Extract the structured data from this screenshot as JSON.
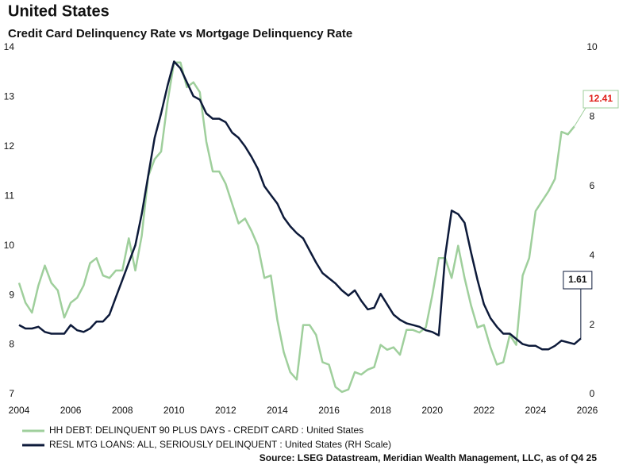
{
  "chart_data": {
    "type": "line",
    "title": "United States",
    "subtitle": "Credit Card Delinquency Rate vs Mortgage Delinquency Rate",
    "source": "Source: LSEG Datastream, Meridian Wealth Management, LLC, as of Q4 25",
    "xlim": [
      2004,
      2026
    ],
    "xticks": [
      2004,
      2006,
      2008,
      2010,
      2012,
      2014,
      2016,
      2018,
      2020,
      2022,
      2024,
      2026
    ],
    "ylim": [
      7,
      14
    ],
    "yticks": [
      7,
      8,
      9,
      10,
      11,
      12,
      13,
      14
    ],
    "y2lim": [
      0,
      10
    ],
    "y2ticks": [
      0,
      2,
      4,
      6,
      8,
      10
    ],
    "series": [
      {
        "name": "HH DEBT: DELINQUENT 90 PLUS DAYS - CREDIT CARD : United States",
        "color": "#9fcf9c",
        "axis": "y",
        "x": [
          2004,
          2004.25,
          2004.5,
          2004.75,
          2005,
          2005.25,
          2005.5,
          2005.75,
          2006,
          2006.25,
          2006.5,
          2006.75,
          2007,
          2007.25,
          2007.5,
          2007.75,
          2008,
          2008.25,
          2008.5,
          2008.75,
          2009,
          2009.25,
          2009.5,
          2009.75,
          2010,
          2010.25,
          2010.5,
          2010.75,
          2011,
          2011.25,
          2011.5,
          2011.75,
          2012,
          2012.25,
          2012.5,
          2012.75,
          2013,
          2013.25,
          2013.5,
          2013.75,
          2014,
          2014.25,
          2014.5,
          2014.75,
          2015,
          2015.25,
          2015.5,
          2015.75,
          2016,
          2016.25,
          2016.5,
          2016.75,
          2017,
          2017.25,
          2017.5,
          2017.75,
          2018,
          2018.25,
          2018.5,
          2018.75,
          2019,
          2019.25,
          2019.5,
          2019.75,
          2020,
          2020.25,
          2020.5,
          2020.75,
          2021,
          2021.25,
          2021.5,
          2021.75,
          2022,
          2022.25,
          2022.5,
          2022.75,
          2023,
          2023.25,
          2023.5,
          2023.75,
          2024,
          2024.25,
          2024.5,
          2024.75,
          2025,
          2025.25,
          2025.5
        ],
        "values": [
          9.25,
          8.85,
          8.65,
          9.2,
          9.6,
          9.25,
          9.1,
          8.55,
          8.85,
          8.95,
          9.2,
          9.65,
          9.75,
          9.4,
          9.35,
          9.5,
          9.5,
          10.15,
          9.5,
          10.2,
          11.4,
          11.75,
          11.9,
          12.9,
          13.7,
          13.7,
          13.2,
          13.3,
          13.1,
          12.1,
          11.5,
          11.5,
          11.25,
          10.85,
          10.45,
          10.55,
          10.3,
          10.0,
          9.35,
          9.4,
          8.5,
          7.85,
          7.45,
          7.3,
          8.4,
          8.4,
          8.2,
          7.65,
          7.6,
          7.15,
          7.05,
          7.1,
          7.45,
          7.4,
          7.5,
          7.55,
          8.0,
          7.9,
          7.95,
          7.8,
          8.3,
          8.3,
          8.25,
          8.35,
          9.0,
          9.75,
          9.75,
          9.35,
          10.0,
          9.35,
          8.8,
          8.35,
          8.4,
          7.95,
          7.6,
          7.65,
          8.2,
          8.0,
          9.4,
          9.75,
          10.7,
          10.9,
          11.1,
          11.35,
          12.3,
          12.25,
          12.41
        ]
      },
      {
        "name": "RESL MTG LOANS: ALL, SERIOUSLY DELINQUENT : United States (RH Scale)",
        "color": "#0d1a3a",
        "axis": "y2",
        "x": [
          2004,
          2004.25,
          2004.5,
          2004.75,
          2005,
          2005.25,
          2005.5,
          2005.75,
          2006,
          2006.25,
          2006.5,
          2006.75,
          2007,
          2007.25,
          2007.5,
          2007.75,
          2008,
          2008.25,
          2008.5,
          2008.75,
          2009,
          2009.25,
          2009.5,
          2009.75,
          2010,
          2010.25,
          2010.5,
          2010.75,
          2011,
          2011.25,
          2011.5,
          2011.75,
          2012,
          2012.25,
          2012.5,
          2012.75,
          2013,
          2013.25,
          2013.5,
          2013.75,
          2014,
          2014.25,
          2014.5,
          2014.75,
          2015,
          2015.25,
          2015.5,
          2015.75,
          2016,
          2016.25,
          2016.5,
          2016.75,
          2017,
          2017.25,
          2017.5,
          2017.75,
          2018,
          2018.25,
          2018.5,
          2018.75,
          2019,
          2019.25,
          2019.5,
          2019.75,
          2020,
          2020.25,
          2020.5,
          2020.75,
          2021,
          2021.25,
          2021.5,
          2021.75,
          2022,
          2022.25,
          2022.5,
          2022.75,
          2023,
          2023.25,
          2023.5,
          2023.75,
          2024,
          2024.25,
          2024.5,
          2024.75,
          2025,
          2025.25,
          2025.5,
          2025.75
        ],
        "values": [
          2.0,
          1.9,
          1.9,
          1.95,
          1.8,
          1.75,
          1.75,
          1.75,
          2.0,
          1.85,
          1.8,
          1.9,
          2.1,
          2.1,
          2.3,
          2.8,
          3.3,
          3.8,
          4.3,
          5.2,
          6.3,
          7.4,
          8.1,
          8.9,
          9.6,
          9.4,
          9.0,
          8.6,
          8.5,
          8.1,
          7.95,
          7.95,
          7.85,
          7.55,
          7.4,
          7.15,
          6.85,
          6.5,
          6.0,
          5.75,
          5.5,
          5.1,
          4.85,
          4.65,
          4.5,
          4.15,
          3.8,
          3.5,
          3.35,
          3.2,
          3.0,
          2.85,
          3.0,
          2.7,
          2.45,
          2.5,
          2.9,
          2.6,
          2.3,
          2.15,
          2.05,
          2.0,
          1.95,
          1.85,
          1.8,
          1.7,
          4.0,
          5.3,
          5.2,
          4.95,
          4.1,
          3.3,
          2.6,
          2.2,
          1.95,
          1.75,
          1.75,
          1.6,
          1.45,
          1.4,
          1.4,
          1.3,
          1.3,
          1.4,
          1.55,
          1.5,
          1.45,
          1.61
        ]
      }
    ]
  }
}
